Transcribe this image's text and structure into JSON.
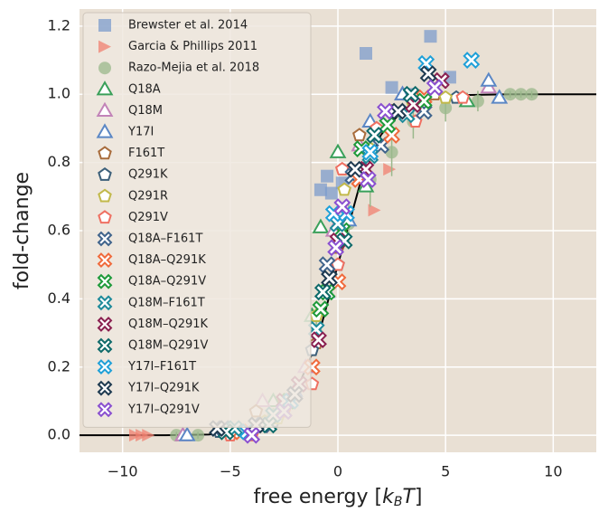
{
  "chart_data": {
    "type": "scatter",
    "xlabel": [
      "free energy [",
      "k",
      "B",
      "T",
      "]"
    ],
    "ylabel": "fold-change",
    "xlim": [
      -12,
      12
    ],
    "ylim": [
      -0.05,
      1.25
    ],
    "xticks": [
      {
        "value": -10,
        "label": "−10"
      },
      {
        "value": -5,
        "label": "−5"
      },
      0,
      5,
      10
    ],
    "yticks": [
      {
        "value": 0,
        "label": "0.0"
      },
      0.2,
      0.4,
      0.6,
      0.8,
      {
        "value": 1,
        "label": "1.0"
      },
      1.2
    ],
    "grid": true,
    "legend": "upper left",
    "curve": {
      "color": "#000000",
      "x": [
        -12,
        -11,
        -10,
        -9,
        -8,
        -7,
        -6,
        -5,
        -4,
        -3,
        -2,
        -1,
        0,
        1,
        2,
        3,
        4,
        5,
        6,
        7,
        8,
        9,
        10,
        11,
        12
      ],
      "values": [
        0,
        0,
        0,
        0,
        0,
        0.001,
        0.002,
        0.007,
        0.018,
        0.047,
        0.119,
        0.269,
        0.5,
        0.731,
        0.881,
        0.953,
        0.982,
        0.993,
        0.998,
        0.999,
        1,
        1,
        1,
        1,
        1
      ]
    },
    "series": [
      {
        "name": "Brewster et al. 2014",
        "color": "#7c9ccc",
        "marker": "square",
        "filled": true,
        "x": [
          -0.8,
          -0.5,
          -0.3,
          0.2,
          1.3,
          2.5,
          3.3,
          4.3,
          5.2
        ],
        "values": [
          0.72,
          0.76,
          0.71,
          0.74,
          1.12,
          1.02,
          1.0,
          1.17,
          1.05
        ]
      },
      {
        "name": "Garcia & Phillips 2011",
        "color": "#f08070",
        "marker": "triangle-right",
        "filled": true,
        "x": [
          -9.4,
          -9.1,
          -8.8,
          1.7,
          2.4
        ],
        "values": [
          0,
          0,
          0,
          0.66,
          0.78
        ]
      },
      {
        "name": "Razo-Mejia et al. 2018",
        "color": "#9ab88b",
        "marker": "circle",
        "filled": true,
        "x": [
          -7.5,
          -6.5,
          -5,
          -3,
          -1,
          0.5,
          1.5,
          2.5,
          3.5,
          5,
          6.5,
          8,
          8.5,
          9
        ],
        "values": [
          0,
          0,
          0.01,
          0.06,
          0.3,
          0.62,
          0.75,
          0.83,
          0.92,
          0.96,
          0.98,
          1,
          1,
          1
        ],
        "errors": [
          0.01,
          0.01,
          0.02,
          0.02,
          0.05,
          0.06,
          0.08,
          0.07,
          0.05,
          0.04,
          0.03,
          0.01,
          0.01,
          0.01
        ]
      },
      {
        "name": "Q18A",
        "color": "#3aa05a",
        "marker": "triangle",
        "filled": false,
        "x": [
          -3,
          -1.2,
          -0.8,
          0,
          1.3,
          3,
          6
        ],
        "values": [
          0.1,
          0.35,
          0.61,
          0.83,
          0.73,
          0.95,
          0.98
        ]
      },
      {
        "name": "Q18M",
        "color": "#c283b8",
        "marker": "triangle",
        "filled": false,
        "x": [
          -7.2,
          -3.5,
          -1.5,
          -0.2,
          1,
          3,
          7
        ],
        "values": [
          0,
          0.1,
          0.2,
          0.6,
          0.85,
          1.0,
          1.02
        ]
      },
      {
        "name": "Y17I",
        "color": "#5b87c5",
        "marker": "triangle",
        "filled": false,
        "x": [
          -7,
          -2,
          -0.5,
          0.5,
          1.5,
          3,
          7,
          7.5
        ],
        "values": [
          0,
          0.13,
          0.42,
          0.63,
          0.92,
          1.0,
          1.04,
          0.99
        ]
      },
      {
        "name": "F161T",
        "color": "#a86c3c",
        "marker": "pentagon",
        "filled": false,
        "x": [
          -3.8,
          -2.5,
          -1,
          0,
          1,
          2.5,
          4.5
        ],
        "values": [
          0.07,
          0.1,
          0.27,
          0.55,
          0.88,
          0.95,
          1.0
        ]
      },
      {
        "name": "Q291K",
        "color": "#3b5f7a",
        "marker": "pentagon",
        "filled": false,
        "x": [
          -5.5,
          -3,
          -1.2,
          0,
          1.2,
          3,
          5.5
        ],
        "values": [
          0.01,
          0.04,
          0.25,
          0.5,
          0.78,
          0.95,
          0.99
        ]
      },
      {
        "name": "Q291R",
        "color": "#c2b94a",
        "marker": "pentagon",
        "filled": false,
        "x": [
          -3.4,
          -2.8,
          -1,
          0.3,
          1.5,
          3.5,
          5
        ],
        "values": [
          0.04,
          0.05,
          0.35,
          0.72,
          0.84,
          0.97,
          0.99
        ]
      },
      {
        "name": "Q291V",
        "color": "#ef7062",
        "marker": "pentagon",
        "filled": false,
        "x": [
          -5,
          -4,
          -2.5,
          -1.2,
          0,
          0.2,
          1.8,
          3.6,
          5.8
        ],
        "values": [
          0,
          0,
          0.07,
          0.15,
          0.5,
          0.78,
          0.9,
          0.92,
          0.99
        ]
      },
      {
        "name": "Q18A–F161T",
        "color": "#40648c",
        "marker": "x",
        "filled": false,
        "x": [
          -5.3,
          -3.5,
          -2,
          -0.5,
          0.7,
          2,
          4
        ],
        "values": [
          0.02,
          0.03,
          0.12,
          0.5,
          0.76,
          0.85,
          0.95
        ]
      },
      {
        "name": "Q18A–Q291K",
        "color": "#f06a3c",
        "marker": "x",
        "filled": false,
        "x": [
          -4.5,
          -2.5,
          -1.2,
          0,
          1,
          2.5,
          4
        ],
        "values": [
          0.01,
          0.07,
          0.2,
          0.45,
          0.75,
          0.88,
          0.99
        ]
      },
      {
        "name": "Q18A–Q291V",
        "color": "#1e9a3a",
        "marker": "x",
        "filled": false,
        "x": [
          -2.3,
          -0.8,
          -0.5,
          0.2,
          1.1,
          2.3,
          4
        ],
        "values": [
          0.1,
          0.37,
          0.42,
          0.6,
          0.84,
          0.91,
          0.98
        ]
      },
      {
        "name": "Q18M–F161T",
        "color": "#1e8a9a",
        "marker": "x",
        "filled": false,
        "x": [
          -4.8,
          -3,
          -1,
          0,
          1.5,
          3.2
        ],
        "values": [
          0.02,
          0.06,
          0.31,
          0.62,
          0.82,
          0.94
        ]
      },
      {
        "name": "Q18M–Q291K",
        "color": "#8a2050",
        "marker": "x",
        "filled": false,
        "x": [
          -2.5,
          -1.8,
          -0.9,
          0,
          1.3,
          3.5,
          4.8
        ],
        "values": [
          0.1,
          0.15,
          0.28,
          0.57,
          0.78,
          0.97,
          1.04
        ]
      },
      {
        "name": "Q18M–Q291V",
        "color": "#0e6a6a",
        "marker": "x",
        "filled": false,
        "x": [
          -5.2,
          -3.2,
          -0.7,
          0.3,
          1.7,
          3.4
        ],
        "values": [
          0.01,
          0.03,
          0.42,
          0.57,
          0.88,
          1.0
        ]
      },
      {
        "name": "Y17I–F161T",
        "color": "#1fa0d8",
        "marker": "x",
        "filled": false,
        "x": [
          -4.2,
          -2.2,
          -0.2,
          0.4,
          1.5,
          4.1,
          6.2
        ],
        "values": [
          0.01,
          0.1,
          0.65,
          0.65,
          0.83,
          1.09,
          1.1
        ]
      },
      {
        "name": "Y17I–Q291K",
        "color": "#1e3a50",
        "marker": "x",
        "filled": false,
        "x": [
          -5.6,
          -3.8,
          -2,
          -0.4,
          0.8,
          2.8,
          4.2
        ],
        "values": [
          0.02,
          0.03,
          0.12,
          0.46,
          0.78,
          0.95,
          1.06
        ]
      },
      {
        "name": "Y17I–Q291V",
        "color": "#8a50d0",
        "marker": "x",
        "filled": false,
        "x": [
          -4,
          -2.5,
          -0.1,
          0.2,
          1.4,
          2.2,
          4.5
        ],
        "values": [
          0,
          0.07,
          0.55,
          0.67,
          0.75,
          0.95,
          1.02
        ]
      }
    ]
  }
}
